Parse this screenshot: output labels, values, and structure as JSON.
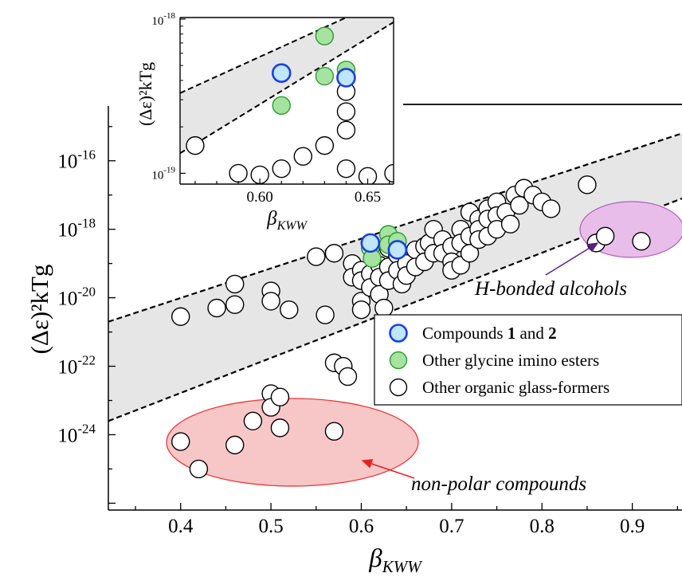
{
  "chart_data": [
    {
      "type": "scatter",
      "xlabel": "βKWW",
      "ylabel": "(Δε)²kTg",
      "xlim": [
        0.32,
        0.955
      ],
      "ylim_exp": [
        -26.2,
        -14.4
      ],
      "yscale": "log",
      "x_ticks": [
        "0.4",
        "0.5",
        "0.6",
        "0.7",
        "0.8",
        "0.9"
      ],
      "x_tick_values": [
        0.4,
        0.5,
        0.6,
        0.7,
        0.8,
        0.9
      ],
      "y_tick_exponents": [
        -16,
        -18,
        -20,
        -22,
        -24
      ],
      "y_tick_base": "10",
      "legend": [
        {
          "label_parts": [
            "Compounds ",
            "1",
            " and ",
            "2"
          ],
          "fill": "#bfe6fb",
          "stroke": "#1a3ee8"
        },
        {
          "label_parts": [
            "Other glycine imino esters"
          ],
          "fill": "#a6e3a0",
          "stroke": "#2a9a30"
        },
        {
          "label_parts": [
            "Other organic glass-formers"
          ],
          "fill": "#ffffff",
          "stroke": "#000000"
        }
      ],
      "annotations": {
        "alcohols": "H-bonded alcohols",
        "nonpolar": "non-polar compounds"
      },
      "colors": {
        "band_fill": "#e6e6e6",
        "nonpolar_fill": "#f7c6c6",
        "nonpolar_stroke": "#e83030",
        "alcohol_fill": "#e8bde9",
        "alcohol_stroke": "#b05cc0",
        "alcohol_text": "#5a1f83",
        "nonpolar_text": "#e82020"
      },
      "band": {
        "upper": [
          [
            0.32,
            -20.7
          ],
          [
            0.955,
            -15.2
          ]
        ],
        "lower": [
          [
            0.32,
            -23.6
          ],
          [
            0.955,
            -17.1
          ]
        ]
      },
      "series": [
        {
          "name": "Compounds 1 and 2",
          "points": [
            [
              0.61,
              -18.4
            ],
            [
              0.64,
              -18.6
            ]
          ]
        },
        {
          "name": "Other glycine imino esters",
          "points": [
            [
              0.61,
              -18.55
            ],
            [
              0.612,
              -18.85
            ],
            [
              0.63,
              -18.15
            ],
            [
              0.63,
              -18.45
            ],
            [
              0.64,
              -18.35
            ]
          ]
        },
        {
          "name": "Other organic glass-formers",
          "points": [
            [
              0.4,
              -20.55
            ],
            [
              0.42,
              -25.0
            ],
            [
              0.4,
              -24.2
            ],
            [
              0.44,
              -20.3
            ],
            [
              0.46,
              -20.2
            ],
            [
              0.46,
              -19.6
            ],
            [
              0.46,
              -24.3
            ],
            [
              0.48,
              -23.6
            ],
            [
              0.5,
              -22.8
            ],
            [
              0.5,
              -23.2
            ],
            [
              0.5,
              -19.8
            ],
            [
              0.5,
              -20.1
            ],
            [
              0.51,
              -22.9
            ],
            [
              0.51,
              -23.8
            ],
            [
              0.52,
              -20.35
            ],
            [
              0.55,
              -18.8
            ],
            [
              0.56,
              -20.5
            ],
            [
              0.57,
              -18.7
            ],
            [
              0.57,
              -21.9
            ],
            [
              0.57,
              -23.9
            ],
            [
              0.58,
              -22.0
            ],
            [
              0.585,
              -22.3
            ],
            [
              0.59,
              -19.0
            ],
            [
              0.59,
              -19.4
            ],
            [
              0.6,
              -19.2
            ],
            [
              0.6,
              -19.5
            ],
            [
              0.6,
              -20.1
            ],
            [
              0.6,
              -20.35
            ],
            [
              0.61,
              -19.3
            ],
            [
              0.61,
              -19.7
            ],
            [
              0.62,
              -19.05
            ],
            [
              0.62,
              -19.4
            ],
            [
              0.62,
              -19.9
            ],
            [
              0.625,
              -20.3
            ],
            [
              0.63,
              -18.55
            ],
            [
              0.63,
              -19.1
            ],
            [
              0.63,
              -19.5
            ],
            [
              0.64,
              -18.75
            ],
            [
              0.64,
              -19.2
            ],
            [
              0.645,
              -19.6
            ],
            [
              0.65,
              -19.0
            ],
            [
              0.65,
              -19.35
            ],
            [
              0.66,
              -18.6
            ],
            [
              0.66,
              -19.1
            ],
            [
              0.67,
              -18.5
            ],
            [
              0.67,
              -18.95
            ],
            [
              0.675,
              -18.4
            ],
            [
              0.68,
              -18.0
            ],
            [
              0.68,
              -18.7
            ],
            [
              0.69,
              -18.3
            ],
            [
              0.69,
              -18.7
            ],
            [
              0.7,
              -18.5
            ],
            [
              0.7,
              -18.95
            ],
            [
              0.7,
              -19.2
            ],
            [
              0.71,
              -18.0
            ],
            [
              0.71,
              -18.4
            ],
            [
              0.71,
              -19.05
            ],
            [
              0.72,
              -17.5
            ],
            [
              0.72,
              -18.2
            ],
            [
              0.72,
              -18.7
            ],
            [
              0.73,
              -17.7
            ],
            [
              0.73,
              -18.0
            ],
            [
              0.73,
              -18.3
            ],
            [
              0.74,
              -17.4
            ],
            [
              0.74,
              -17.7
            ],
            [
              0.74,
              -18.2
            ],
            [
              0.75,
              -17.2
            ],
            [
              0.75,
              -17.6
            ],
            [
              0.75,
              -18.0
            ],
            [
              0.76,
              -17.5
            ],
            [
              0.765,
              -17.85
            ],
            [
              0.77,
              -17.0
            ],
            [
              0.775,
              -17.3
            ],
            [
              0.78,
              -16.8
            ],
            [
              0.79,
              -17.0
            ],
            [
              0.8,
              -17.2
            ],
            [
              0.81,
              -17.4
            ],
            [
              0.85,
              -16.7
            ],
            [
              0.86,
              -18.4
            ],
            [
              0.87,
              -18.2
            ],
            [
              0.91,
              -18.35
            ]
          ]
        }
      ]
    },
    {
      "type": "scatter",
      "inset": true,
      "xlabel": "βKWW",
      "ylabel": "(Δε)²kTg",
      "xlim": [
        0.563,
        0.662
      ],
      "ylim_exp": [
        -19.07,
        -17.99
      ],
      "yscale": "log",
      "x_ticks": [
        "0.60",
        "0.65"
      ],
      "x_tick_values": [
        0.6,
        0.65
      ],
      "y_tick_exponents": [
        -18,
        -19
      ],
      "y_tick_base": "10",
      "band": {
        "upper": [
          [
            0.563,
            -18.48
          ],
          [
            0.662,
            -17.85
          ]
        ],
        "lower": [
          [
            0.563,
            -18.87
          ],
          [
            0.662,
            -18.02
          ]
        ]
      },
      "series": [
        {
          "name": "Compounds 1 and 2",
          "points": [
            [
              0.61,
              -18.35
            ],
            [
              0.64,
              -18.38
            ]
          ]
        },
        {
          "name": "Other glycine imino esters",
          "points": [
            [
              0.61,
              -18.56
            ],
            [
              0.63,
              -18.11
            ],
            [
              0.63,
              -18.37
            ],
            [
              0.64,
              -18.33
            ]
          ]
        },
        {
          "name": "Other organic glass-formers",
          "points": [
            [
              0.57,
              -18.82
            ],
            [
              0.59,
              -19.0
            ],
            [
              0.6,
              -19.01
            ],
            [
              0.61,
              -18.97
            ],
            [
              0.62,
              -18.89
            ],
            [
              0.63,
              -18.82
            ],
            [
              0.64,
              -18.72
            ],
            [
              0.64,
              -18.6
            ],
            [
              0.64,
              -18.47
            ],
            [
              0.64,
              -18.97
            ],
            [
              0.65,
              -19.02
            ],
            [
              0.662,
              -19.0
            ]
          ]
        }
      ]
    }
  ]
}
